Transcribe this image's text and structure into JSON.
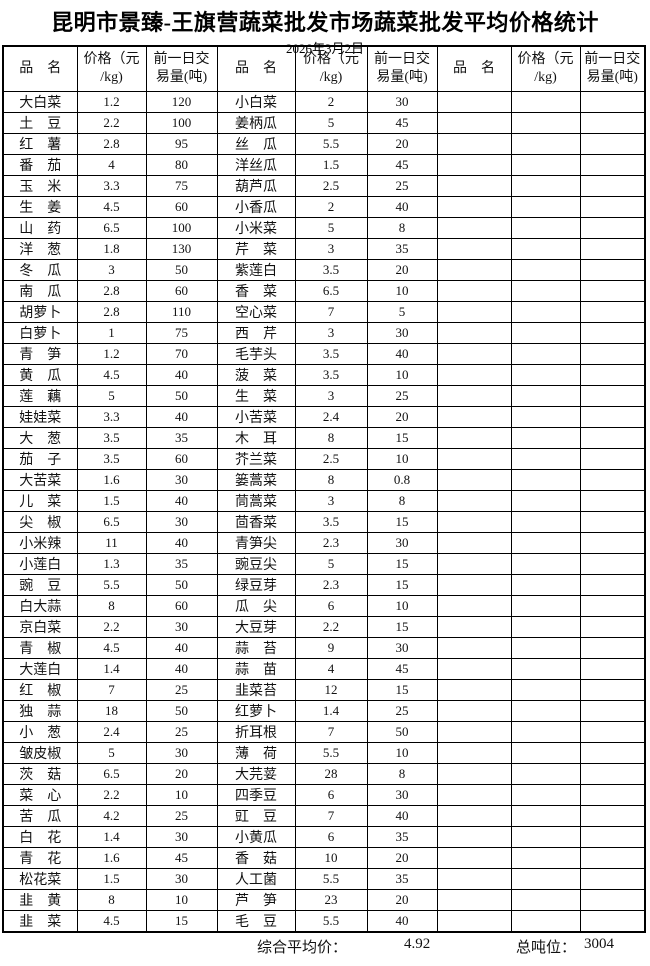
{
  "title": "昆明市景臻-王旗营蔬菜批发市场蔬菜批发平均价格统计",
  "date": "2026年3月2日",
  "headers": {
    "name": "品　名",
    "price": "价格（元\n/kg)",
    "volume": "前一日交\n易量(吨)"
  },
  "rows": [
    {
      "c1": [
        "大白菜",
        "1.2",
        "120"
      ],
      "c2": [
        "小白菜",
        "2",
        "30"
      ],
      "c3": [
        "",
        "",
        ""
      ]
    },
    {
      "c1": [
        "土　豆",
        "2.2",
        "100"
      ],
      "c2": [
        "姜柄瓜",
        "5",
        "45"
      ],
      "c3": [
        "",
        "",
        ""
      ]
    },
    {
      "c1": [
        "红　薯",
        "2.8",
        "95"
      ],
      "c2": [
        "丝　瓜",
        "5.5",
        "20"
      ],
      "c3": [
        "",
        "",
        ""
      ]
    },
    {
      "c1": [
        "番　茄",
        "4",
        "80"
      ],
      "c2": [
        "洋丝瓜",
        "1.5",
        "45"
      ],
      "c3": [
        "",
        "",
        ""
      ]
    },
    {
      "c1": [
        "玉　米",
        "3.3",
        "75"
      ],
      "c2": [
        "葫芦瓜",
        "2.5",
        "25"
      ],
      "c3": [
        "",
        "",
        ""
      ]
    },
    {
      "c1": [
        "生　姜",
        "4.5",
        "60"
      ],
      "c2": [
        "小香瓜",
        "2",
        "40"
      ],
      "c3": [
        "",
        "",
        ""
      ]
    },
    {
      "c1": [
        "山　药",
        "6.5",
        "100"
      ],
      "c2": [
        "小米菜",
        "5",
        "8"
      ],
      "c3": [
        "",
        "",
        ""
      ]
    },
    {
      "c1": [
        "洋　葱",
        "1.8",
        "130"
      ],
      "c2": [
        "芹　菜",
        "3",
        "35"
      ],
      "c3": [
        "",
        "",
        ""
      ]
    },
    {
      "c1": [
        "冬　瓜",
        "3",
        "50"
      ],
      "c2": [
        "紫莲白",
        "3.5",
        "20"
      ],
      "c3": [
        "",
        "",
        ""
      ]
    },
    {
      "c1": [
        "南　瓜",
        "2.8",
        "60"
      ],
      "c2": [
        "香　菜",
        "6.5",
        "10"
      ],
      "c3": [
        "",
        "",
        ""
      ]
    },
    {
      "c1": [
        "胡萝卜",
        "2.8",
        "110"
      ],
      "c2": [
        "空心菜",
        "7",
        "5"
      ],
      "c3": [
        "",
        "",
        ""
      ]
    },
    {
      "c1": [
        "白萝卜",
        "1",
        "75"
      ],
      "c2": [
        "西　芹",
        "3",
        "30"
      ],
      "c3": [
        "",
        "",
        ""
      ]
    },
    {
      "c1": [
        "青　笋",
        "1.2",
        "70"
      ],
      "c2": [
        "毛芋头",
        "3.5",
        "40"
      ],
      "c3": [
        "",
        "",
        ""
      ]
    },
    {
      "c1": [
        "黄　瓜",
        "4.5",
        "40"
      ],
      "c2": [
        "菠　菜",
        "3.5",
        "10"
      ],
      "c3": [
        "",
        "",
        ""
      ]
    },
    {
      "c1": [
        "莲　藕",
        "5",
        "50"
      ],
      "c2": [
        "生　菜",
        "3",
        "25"
      ],
      "c3": [
        "",
        "",
        ""
      ]
    },
    {
      "c1": [
        "娃娃菜",
        "3.3",
        "40"
      ],
      "c2": [
        "小苦菜",
        "2.4",
        "20"
      ],
      "c3": [
        "",
        "",
        ""
      ]
    },
    {
      "c1": [
        "大　葱",
        "3.5",
        "35"
      ],
      "c2": [
        "木　耳",
        "8",
        "15"
      ],
      "c3": [
        "",
        "",
        ""
      ]
    },
    {
      "c1": [
        "茄　子",
        "3.5",
        "60"
      ],
      "c2": [
        "芥兰菜",
        "2.5",
        "10"
      ],
      "c3": [
        "",
        "",
        ""
      ]
    },
    {
      "c1": [
        "大苦菜",
        "1.6",
        "30"
      ],
      "c2": [
        "篓蒿菜",
        "8",
        "0.8"
      ],
      "c3": [
        "",
        "",
        ""
      ]
    },
    {
      "c1": [
        "儿　菜",
        "1.5",
        "40"
      ],
      "c2": [
        "茼蒿菜",
        "3",
        "8"
      ],
      "c3": [
        "",
        "",
        ""
      ]
    },
    {
      "c1": [
        "尖　椒",
        "6.5",
        "30"
      ],
      "c2": [
        "茴香菜",
        "3.5",
        "15"
      ],
      "c3": [
        "",
        "",
        ""
      ]
    },
    {
      "c1": [
        "小米辣",
        "11",
        "40"
      ],
      "c2": [
        "青笋尖",
        "2.3",
        "30"
      ],
      "c3": [
        "",
        "",
        ""
      ]
    },
    {
      "c1": [
        "小莲白",
        "1.3",
        "35"
      ],
      "c2": [
        "豌豆尖",
        "5",
        "15"
      ],
      "c3": [
        "",
        "",
        ""
      ]
    },
    {
      "c1": [
        "豌　豆",
        "5.5",
        "50"
      ],
      "c2": [
        "绿豆芽",
        "2.3",
        "15"
      ],
      "c3": [
        "",
        "",
        ""
      ]
    },
    {
      "c1": [
        "白大蒜",
        "8",
        "60"
      ],
      "c2": [
        "瓜　尖",
        "6",
        "10"
      ],
      "c3": [
        "",
        "",
        ""
      ]
    },
    {
      "c1": [
        "京白菜",
        "2.2",
        "30"
      ],
      "c2": [
        "大豆芽",
        "2.2",
        "15"
      ],
      "c3": [
        "",
        "",
        ""
      ]
    },
    {
      "c1": [
        "青　椒",
        "4.5",
        "40"
      ],
      "c2": [
        "蒜　苔",
        "9",
        "30"
      ],
      "c3": [
        "",
        "",
        ""
      ]
    },
    {
      "c1": [
        "大莲白",
        "1.4",
        "40"
      ],
      "c2": [
        "蒜　苗",
        "4",
        "45"
      ],
      "c3": [
        "",
        "",
        ""
      ]
    },
    {
      "c1": [
        "红　椒",
        "7",
        "25"
      ],
      "c2": [
        "韭菜苔",
        "12",
        "15"
      ],
      "c3": [
        "",
        "",
        ""
      ]
    },
    {
      "c1": [
        "独　蒜",
        "18",
        "50"
      ],
      "c2": [
        "红萝卜",
        "1.4",
        "25"
      ],
      "c3": [
        "",
        "",
        ""
      ]
    },
    {
      "c1": [
        "小　葱",
        "2.4",
        "25"
      ],
      "c2": [
        "折耳根",
        "7",
        "50"
      ],
      "c3": [
        "",
        "",
        ""
      ]
    },
    {
      "c1": [
        "皱皮椒",
        "5",
        "30"
      ],
      "c2": [
        "薄　荷",
        "5.5",
        "10"
      ],
      "c3": [
        "",
        "",
        ""
      ]
    },
    {
      "c1": [
        "茨　菇",
        "6.5",
        "20"
      ],
      "c2": [
        "大芫荽",
        "28",
        "8"
      ],
      "c3": [
        "",
        "",
        ""
      ]
    },
    {
      "c1": [
        "菜　心",
        "2.2",
        "10"
      ],
      "c2": [
        "四季豆",
        "6",
        "30"
      ],
      "c3": [
        "",
        "",
        ""
      ]
    },
    {
      "c1": [
        "苦　瓜",
        "4.2",
        "25"
      ],
      "c2": [
        "豇　豆",
        "7",
        "40"
      ],
      "c3": [
        "",
        "",
        ""
      ]
    },
    {
      "c1": [
        "白　花",
        "1.4",
        "30"
      ],
      "c2": [
        "小黄瓜",
        "6",
        "35"
      ],
      "c3": [
        "",
        "",
        ""
      ]
    },
    {
      "c1": [
        "青　花",
        "1.6",
        "45"
      ],
      "c2": [
        "香　菇",
        "10",
        "20"
      ],
      "c3": [
        "",
        "",
        ""
      ]
    },
    {
      "c1": [
        "松花菜",
        "1.5",
        "30"
      ],
      "c2": [
        "人工菌",
        "5.5",
        "35"
      ],
      "c3": [
        "",
        "",
        ""
      ]
    },
    {
      "c1": [
        "韭　黄",
        "8",
        "10"
      ],
      "c2": [
        "芦　笋",
        "23",
        "20"
      ],
      "c3": [
        "",
        "",
        ""
      ]
    },
    {
      "c1": [
        "韭　菜",
        "4.5",
        "15"
      ],
      "c2": [
        "毛　豆",
        "5.5",
        "40"
      ],
      "c3": [
        "",
        "",
        ""
      ]
    }
  ],
  "footer": {
    "avg_label": "综合平均价：",
    "avg_value": "4.92",
    "tonnage_label": "总吨位：",
    "tonnage_value": "3004"
  }
}
